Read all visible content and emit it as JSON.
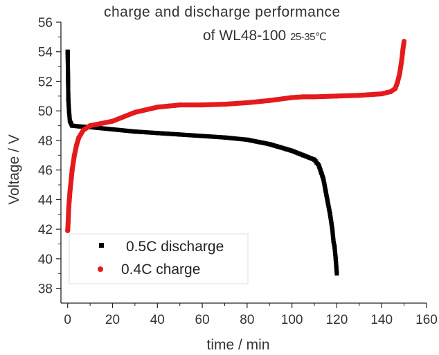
{
  "chart_data": {
    "type": "scatter",
    "title_line1": "charge and discharge performance",
    "title_line2": "of WL48-100",
    "title_temp": "25-35℃",
    "xlabel": "time / min",
    "ylabel": "Voltage / V",
    "xlim": [
      -3,
      160
    ],
    "ylim": [
      37,
      56
    ],
    "xticks": [
      0,
      20,
      40,
      60,
      80,
      100,
      120,
      140,
      160
    ],
    "yticks": [
      38,
      40,
      42,
      44,
      46,
      48,
      50,
      52,
      54,
      56
    ],
    "grid": false,
    "legend_position": "bottom-left",
    "series": [
      {
        "name": "0.5C discharge",
        "marker": "square",
        "color": "#000000",
        "x": [
          0,
          0.3,
          0.6,
          1,
          2,
          5,
          10,
          20,
          30,
          40,
          50,
          60,
          70,
          80,
          90,
          100,
          105,
          110,
          112,
          114,
          115,
          116,
          117,
          118,
          118.5,
          119,
          119.5,
          120
        ],
        "y": [
          54.0,
          50.8,
          50.0,
          49.3,
          49.0,
          48.95,
          48.9,
          48.75,
          48.6,
          48.5,
          48.4,
          48.3,
          48.2,
          48.05,
          47.75,
          47.3,
          47.0,
          46.7,
          46.3,
          45.4,
          44.6,
          43.8,
          43.0,
          42.0,
          41.2,
          40.8,
          40.0,
          39.0
        ]
      },
      {
        "name": "0.4C charge",
        "marker": "circle",
        "color": "#e41a1c",
        "x": [
          0,
          0.2,
          0.5,
          1,
          2,
          3,
          4,
          5,
          7,
          10,
          15,
          20,
          30,
          40,
          50,
          60,
          70,
          80,
          90,
          100,
          105,
          110,
          120,
          130,
          140,
          144,
          146,
          147,
          148,
          149,
          149.5,
          150
        ],
        "y": [
          41.9,
          42.4,
          43.5,
          44.5,
          46.0,
          47.0,
          47.7,
          48.2,
          48.7,
          49.0,
          49.15,
          49.3,
          49.9,
          50.25,
          50.4,
          50.4,
          50.45,
          50.55,
          50.7,
          50.9,
          50.95,
          50.95,
          51.0,
          51.05,
          51.15,
          51.3,
          51.5,
          51.9,
          52.5,
          53.5,
          54.2,
          54.7
        ]
      }
    ]
  }
}
